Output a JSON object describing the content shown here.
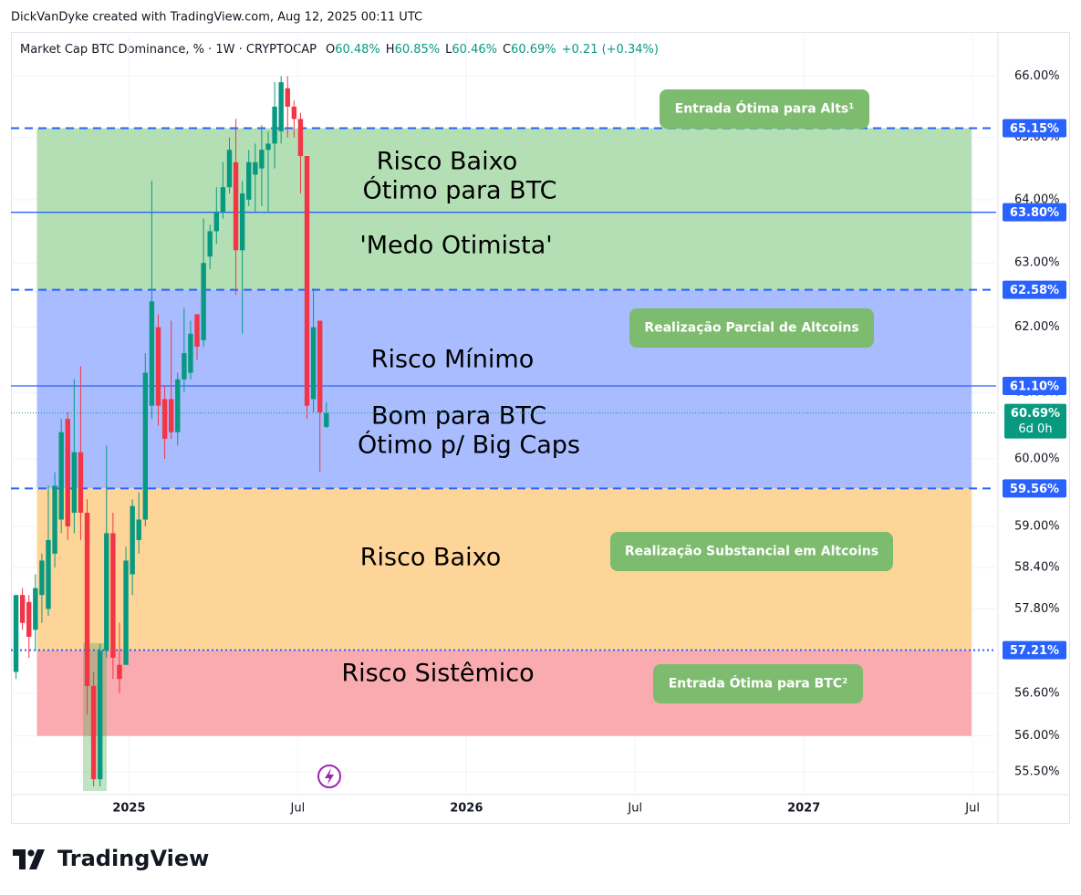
{
  "header": {
    "credit": "DickVanDyke created with TradingView.com, Aug 12, 2025 00:11 UTC"
  },
  "footer": {
    "logo_text": "TradingView"
  },
  "chart_data": {
    "type": "candlestick",
    "legend": {
      "symbol": "Market Cap BTC Dominance, % · 1W · CRYPTOCAP",
      "ohlc": [
        [
          "O",
          "60.48%"
        ],
        [
          "H",
          "60.85%"
        ],
        [
          "L",
          "60.46%"
        ],
        [
          "C",
          "60.69%"
        ]
      ],
      "change": "+0.21 (+0.34%)"
    },
    "log_scale": true,
    "grid": true,
    "up_color": "#089981",
    "down_color": "#f23645",
    "ylim": [
      55.2,
      66.7
    ],
    "yticks": [
      {
        "value": 55.5,
        "label": "55.50%"
      },
      {
        "value": 56,
        "label": "56.00%"
      },
      {
        "value": 56.6,
        "label": "56.60%"
      },
      {
        "value": 57.8,
        "label": "57.80%"
      },
      {
        "value": 58.4,
        "label": "58.40%"
      },
      {
        "value": 59,
        "label": "59.00%"
      },
      {
        "value": 60,
        "label": "60.00%"
      },
      {
        "value": 61,
        "label": "61.00%"
      },
      {
        "value": 62,
        "label": "62.00%"
      },
      {
        "value": 63,
        "label": "63.00%"
      },
      {
        "value": 64,
        "label": "64.00%"
      },
      {
        "value": 65,
        "label": "65.00%"
      },
      {
        "value": 66,
        "label": "66.00%"
      }
    ],
    "xlim": [
      2024.65,
      2027.57
    ],
    "xticks": [
      {
        "value": 2025,
        "label": "2025"
      },
      {
        "value": 2025.5,
        "label": "Jul"
      },
      {
        "value": 2026,
        "label": "2026"
      },
      {
        "value": 2026.5,
        "label": "Jul"
      },
      {
        "value": 2027,
        "label": "2027"
      },
      {
        "value": 2027.5,
        "label": "Jul"
      }
    ],
    "open": [
      56.9,
      58.0,
      57.9,
      57.5,
      58.0,
      57.8,
      58.6,
      59.1,
      60.6,
      59.2,
      60.1,
      59.2,
      56.7,
      55.4,
      57.2,
      58.9,
      57.0,
      57.0,
      58.3,
      58.8,
      59.1,
      60.8,
      62.0,
      60.9,
      60.9,
      60.4,
      61.2,
      61.3,
      62.2,
      61.8,
      63.1,
      63.5,
      63.8,
      64.2,
      64.6,
      63.2,
      64.0,
      64.4,
      64.5,
      64.8,
      64.9,
      65.1,
      65.8,
      65.5,
      65.3,
      64.7,
      60.9,
      62.1,
      60.48
    ],
    "high": [
      58.0,
      58.1,
      58.0,
      58.3,
      58.6,
      59.6,
      59.8,
      60.6,
      60.7,
      61.2,
      61.4,
      59.4,
      56.9,
      57.3,
      60.2,
      59.2,
      57.6,
      58.7,
      59.4,
      59.5,
      61.6,
      64.3,
      62.2,
      61.1,
      62.1,
      61.3,
      62.3,
      62.1,
      62.2,
      63.7,
      63.6,
      64.2,
      64.6,
      65.0,
      65.3,
      64.3,
      64.8,
      64.9,
      65.2,
      65.1,
      65.9,
      66.0,
      66.0,
      65.6,
      65.4,
      64.7,
      62.6,
      62.1,
      60.85
    ],
    "low": [
      56.8,
      57.5,
      57.1,
      57.2,
      57.6,
      57.7,
      58.4,
      58.9,
      58.8,
      58.9,
      58.8,
      56.3,
      55.3,
      55.3,
      57.1,
      56.8,
      56.6,
      57.0,
      58.0,
      58.6,
      59.0,
      60.6,
      60.5,
      60.0,
      60.3,
      60.2,
      61.0,
      61.2,
      61.5,
      61.7,
      62.9,
      63.3,
      63.7,
      64.1,
      62.5,
      61.9,
      63.9,
      63.8,
      63.9,
      63.8,
      64.5,
      64.9,
      65.0,
      65.0,
      64.1,
      60.6,
      60.7,
      59.8,
      60.46
    ],
    "close": [
      58.0,
      57.6,
      57.4,
      58.1,
      58.5,
      58.8,
      59.6,
      60.4,
      59.0,
      60.1,
      59.2,
      56.7,
      55.4,
      57.2,
      58.9,
      57.1,
      56.8,
      58.5,
      59.3,
      59.1,
      61.3,
      62.4,
      60.8,
      60.3,
      60.4,
      61.2,
      61.6,
      61.9,
      61.7,
      63.0,
      63.5,
      63.8,
      64.2,
      64.8,
      63.2,
      64.1,
      64.6,
      64.6,
      64.8,
      64.9,
      65.5,
      65.9,
      65.5,
      65.3,
      64.7,
      60.8,
      62.0,
      60.7,
      60.69
    ],
    "zones": [
      {
        "ylim": [
          62.58,
          65.15
        ],
        "color": "#b4dfb5",
        "labels": [
          "Risco Baixo",
          "Ótimo para BTC",
          "'Medo Otimista'"
        ]
      },
      {
        "ylim": [
          59.56,
          62.58
        ],
        "color": "#a8bcff",
        "labels": [
          "Risco Mínimo",
          "Bom para BTC",
          "Ótimo p/ Big Caps"
        ]
      },
      {
        "ylim": [
          57.21,
          59.56
        ],
        "color": "#fdd598",
        "labels": [
          "Risco Baixo"
        ]
      },
      {
        "ylim": [
          56.0,
          57.21
        ],
        "color": "#f9abaf",
        "labels": [
          "Risco Sistêmico"
        ]
      }
    ],
    "annotations": [
      "Entrada Ótima para Alts¹",
      "Realização Parcial de Altcoins",
      "Realização Substancial em Altcoins",
      "Entrada Ótima para BTC²"
    ],
    "price_lines": [
      {
        "value": 65.15,
        "label": "65.15%",
        "style": "dashed"
      },
      {
        "value": 63.8,
        "label": "63.80%",
        "style": "solid"
      },
      {
        "value": 62.58,
        "label": "62.58%",
        "style": "dashed"
      },
      {
        "value": 61.1,
        "label": "61.10%",
        "style": "solid"
      },
      {
        "value": 59.56,
        "label": "59.56%",
        "style": "dashed"
      },
      {
        "value": 57.21,
        "label": "57.21%",
        "style": "dotted"
      }
    ],
    "line_color": "#2962ff",
    "last_price": {
      "value": 60.69,
      "label": "60.69%",
      "countdown": "6d 0h"
    }
  }
}
